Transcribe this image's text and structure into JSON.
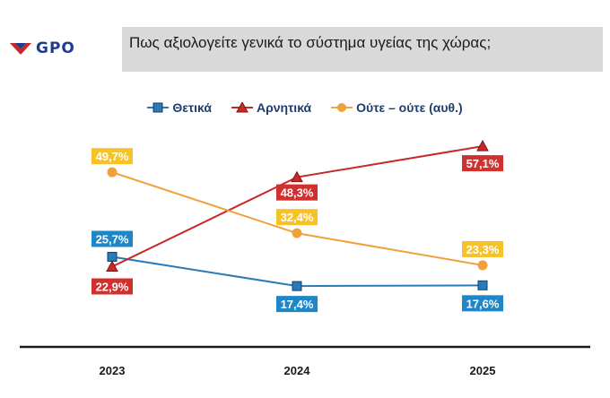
{
  "brand": {
    "logo_text": "GPO"
  },
  "header": {
    "title": "Πως αξιολογείτε γενικά το σύστημα υγείας της χώρας;"
  },
  "colors": {
    "positive": "#2a7ab8",
    "negative": "#c8282a",
    "neutral": "#f0a13c",
    "label_positive_bg": "#1f86c8",
    "label_negative_bg": "#d2302e",
    "label_neutral_bg": "#f7c225",
    "axis": "#1a1a1a"
  },
  "chart_data": {
    "type": "line",
    "title": "Πως αξιολογείτε γενικά το σύστημα υγείας της χώρας;",
    "categories": [
      "2023",
      "2024",
      "2025"
    ],
    "series": [
      {
        "name": "Θετικά",
        "marker": "square",
        "values": [
          25.7,
          17.4,
          17.6
        ],
        "labels": [
          "25,7%",
          "17,4%",
          "17,6%"
        ]
      },
      {
        "name": "Αρνητικά",
        "marker": "triangle",
        "values": [
          22.9,
          48.3,
          57.1
        ],
        "labels": [
          "22,9%",
          "48,3%",
          "57,1%"
        ]
      },
      {
        "name": "Ούτε – ούτε (αυθ.)",
        "marker": "circle",
        "values": [
          49.7,
          32.4,
          23.3
        ],
        "labels": [
          "49,7%",
          "32,4%",
          "23,3%"
        ]
      }
    ],
    "legend_position": "top",
    "grid": false
  }
}
